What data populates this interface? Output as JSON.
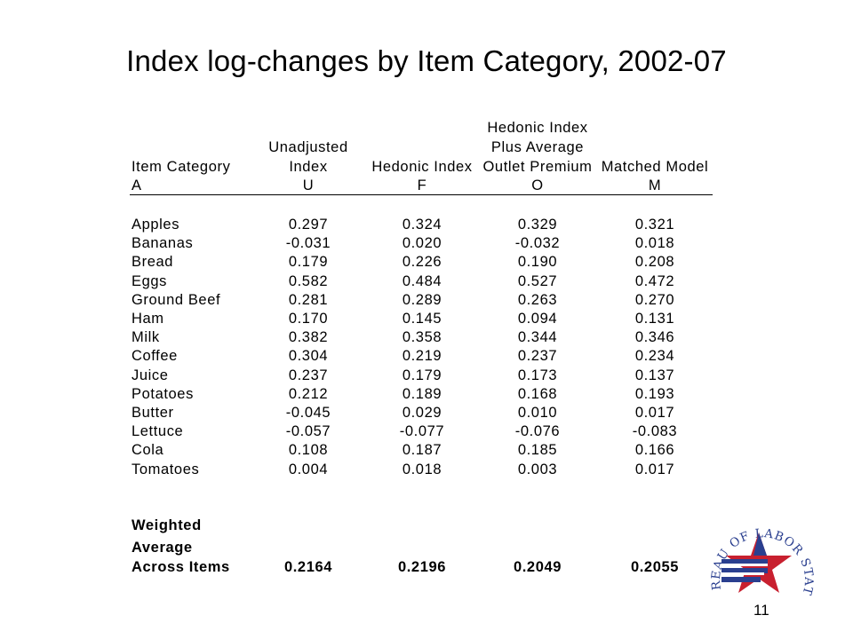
{
  "title": "Index log-changes by Item Category, 2002-07",
  "table": {
    "header_lines": [
      [
        "",
        "",
        "",
        "Hedonic Index",
        ""
      ],
      [
        "",
        "Unadjusted",
        "",
        "Plus Average",
        ""
      ],
      [
        "Item Category",
        "Index",
        "Hedonic Index",
        "Outlet Premium",
        "Matched Model"
      ],
      [
        "A",
        "U",
        "F",
        "O",
        "M"
      ]
    ],
    "rows": [
      [
        "Apples",
        "0.297",
        "0.324",
        "0.329",
        "0.321"
      ],
      [
        "Bananas",
        "-0.031",
        "0.020",
        "-0.032",
        "0.018"
      ],
      [
        "Bread",
        "0.179",
        "0.226",
        "0.190",
        "0.208"
      ],
      [
        "Eggs",
        "0.582",
        "0.484",
        "0.527",
        "0.472"
      ],
      [
        "Ground Beef",
        "0.281",
        "0.289",
        "0.263",
        "0.270"
      ],
      [
        "Ham",
        "0.170",
        "0.145",
        "0.094",
        "0.131"
      ],
      [
        "Milk",
        "0.382",
        "0.358",
        "0.344",
        "0.346"
      ],
      [
        "Coffee",
        "0.304",
        "0.219",
        "0.237",
        "0.234"
      ],
      [
        "Juice",
        "0.237",
        "0.179",
        "0.173",
        "0.137"
      ],
      [
        "Potatoes",
        "0.212",
        "0.189",
        "0.168",
        "0.193"
      ],
      [
        "Butter",
        "-0.045",
        "0.029",
        "0.010",
        "0.017"
      ],
      [
        "Lettuce",
        "-0.057",
        "-0.077",
        "-0.076",
        "-0.083"
      ],
      [
        "Cola",
        "0.108",
        "0.187",
        "0.185",
        "0.166"
      ],
      [
        "Tomatoes",
        "0.004",
        "0.018",
        "0.003",
        "0.017"
      ]
    ],
    "weighted": {
      "label_lines": [
        "Weighted",
        "Average",
        "Across Items"
      ],
      "values": [
        "0.2164",
        "0.2196",
        "0.2049",
        "0.2055"
      ]
    }
  },
  "logo": {
    "text": "U.S. BUREAU OF LABOR STATISTICS",
    "colors": {
      "blue": "#2a3f8f",
      "red": "#c8202f"
    }
  },
  "page_number": "11"
}
